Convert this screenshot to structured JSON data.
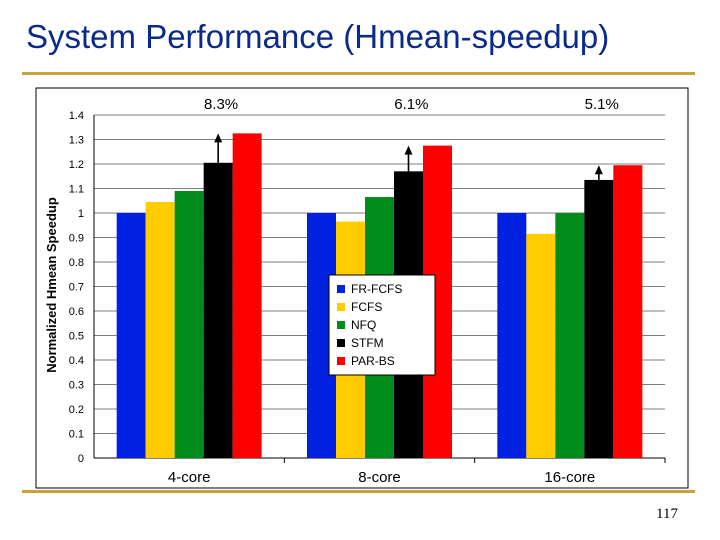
{
  "slide": {
    "title": "System Performance (Hmean-speedup)",
    "page_number": "117"
  },
  "chart_data": {
    "type": "bar",
    "title": "",
    "xlabel": "",
    "ylabel": "Normalized Hmean Speedup",
    "ylim": [
      0,
      1.4
    ],
    "yticks": [
      "0",
      "0.1",
      "0.2",
      "0.3",
      "0.4",
      "0.5",
      "0.6",
      "0.7",
      "0.8",
      "0.9",
      "1",
      "1.1",
      "1.2",
      "1.3",
      "1.4"
    ],
    "categories": [
      "4-core",
      "8-core",
      "16-core"
    ],
    "series": [
      {
        "name": "FR-FCFS",
        "color": "#0022e0",
        "values": [
          1.0,
          1.0,
          1.0
        ]
      },
      {
        "name": "FCFS",
        "color": "#ffcc00",
        "values": [
          1.045,
          0.965,
          0.915
        ]
      },
      {
        "name": "NFQ",
        "color": "#008c1a",
        "values": [
          1.09,
          1.065,
          1.0
        ]
      },
      {
        "name": "STFM",
        "color": "#000000",
        "values": [
          1.205,
          1.17,
          1.135
        ]
      },
      {
        "name": "PAR-BS",
        "color": "#ff0000",
        "values": [
          1.325,
          1.275,
          1.195
        ]
      }
    ],
    "annotations": [
      "8.3%",
      "6.1%",
      "5.1%"
    ],
    "grid": true,
    "legend_placement": "center"
  }
}
